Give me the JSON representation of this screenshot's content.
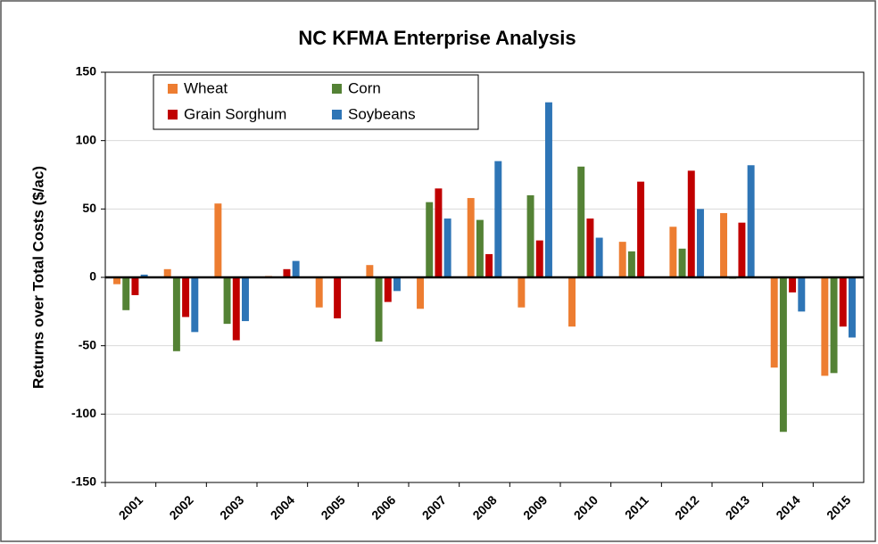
{
  "chart_data": {
    "type": "bar",
    "title": "NC KFMA Enterprise Analysis",
    "y_label": "Returns over Total Costs ($/ac)",
    "categories": [
      "2001",
      "2002",
      "2003",
      "2004",
      "2005",
      "2006",
      "2007",
      "2008",
      "2009",
      "2010",
      "2011",
      "2012",
      "2013",
      "2014",
      "2015"
    ],
    "series": [
      {
        "name": "Wheat",
        "color": "#ed7d31",
        "values": [
          -5,
          6,
          54,
          1,
          -22,
          9,
          -23,
          58,
          -22,
          -36,
          26,
          37,
          47,
          -66,
          -72
        ]
      },
      {
        "name": "Corn",
        "color": "#548235",
        "values": [
          -24,
          -54,
          -34,
          0,
          0,
          -47,
          55,
          42,
          60,
          81,
          19,
          21,
          -1,
          -113,
          -70
        ]
      },
      {
        "name": "Grain Sorghum",
        "color": "#c00000",
        "values": [
          -13,
          -29,
          -46,
          6,
          -30,
          -18,
          65,
          17,
          27,
          43,
          70,
          78,
          40,
          -11,
          -36
        ]
      },
      {
        "name": "Soybeans",
        "color": "#2e75b6",
        "values": [
          2,
          -40,
          -32,
          12,
          0,
          -10,
          43,
          85,
          128,
          29,
          0,
          50,
          82,
          -25,
          -44
        ]
      }
    ],
    "ylim": [
      -150,
      150
    ],
    "yticks": [
      -150,
      -100,
      -50,
      0,
      50,
      100,
      150
    ],
    "grid": true,
    "legend": "upper left"
  }
}
